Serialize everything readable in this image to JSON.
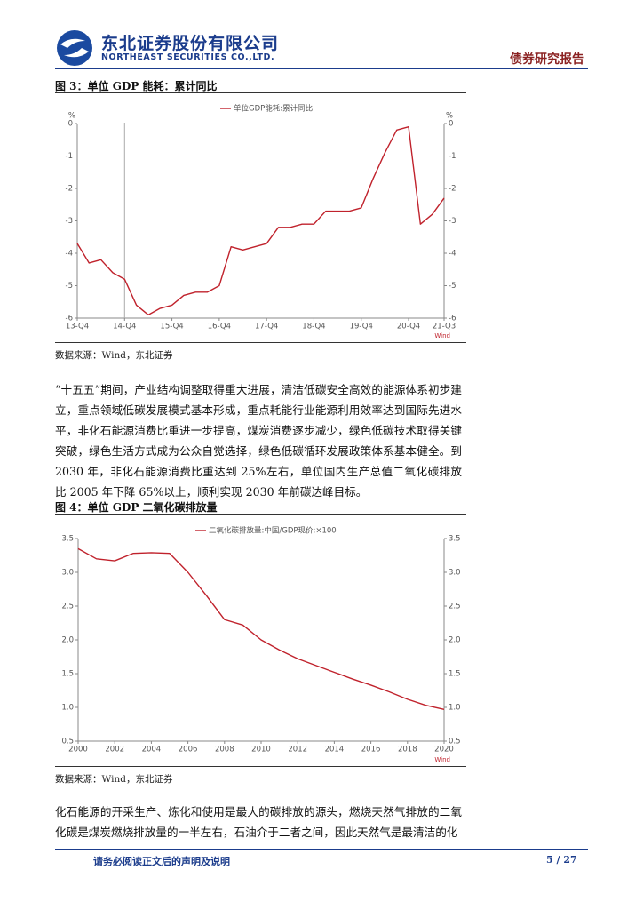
{
  "header": {
    "company": "东北证券股份有限公司",
    "company_en": "NORTHEAST SECURITIES CO.,LTD.",
    "report_type": "债券研究报告"
  },
  "chart_data": [
    {
      "type": "line",
      "title": "图 3：单位 GDP 能耗：累计同比",
      "categories": [
        "13-Q4",
        null,
        null,
        null,
        "14-Q4",
        null,
        null,
        null,
        "15-Q4",
        null,
        null,
        null,
        "16-Q4",
        null,
        null,
        null,
        "17-Q4",
        null,
        null,
        null,
        "18-Q4",
        null,
        null,
        null,
        "19-Q4",
        null,
        null,
        null,
        "20-Q4",
        null,
        null,
        "21-Q3"
      ],
      "series": [
        {
          "name": "单位GDP能耗:累计同比",
          "color": "#c0222c",
          "values": [
            -3.7,
            -4.3,
            -4.2,
            -4.6,
            -4.8,
            -5.6,
            -5.9,
            -5.7,
            -5.6,
            -5.3,
            -5.2,
            -5.2,
            -5.0,
            -3.8,
            -3.9,
            -3.8,
            -3.7,
            -3.2,
            -3.2,
            -3.1,
            -3.1,
            -2.7,
            -2.7,
            -2.7,
            -2.6,
            -1.7,
            -0.9,
            -0.2,
            -0.1,
            -3.1,
            -2.8,
            -2.3
          ]
        }
      ],
      "ylim": [
        -6,
        0
      ],
      "yticks": [
        0,
        -1,
        -2,
        -3,
        -4,
        -5,
        -6
      ],
      "y2lim": [
        -6,
        0
      ],
      "y2ticks": [
        0,
        -1,
        -2,
        -3,
        -4,
        -5,
        -6
      ],
      "yunit": "%",
      "y2unit": "%",
      "legend": "top",
      "source_label": "Wind",
      "source": "数据来源：Wind，东北证券"
    },
    {
      "type": "line",
      "title": "图 4：单位 GDP 二氧化碳排放量",
      "x": [
        2000,
        2001,
        2002,
        2003,
        2004,
        2005,
        2006,
        2007,
        2008,
        2009,
        2010,
        2011,
        2012,
        2013,
        2014,
        2015,
        2016,
        2017,
        2018,
        2019,
        2020
      ],
      "series": [
        {
          "name": "二氧化碳排放量:中国/GDP现价:×100",
          "color": "#c0222c",
          "values": [
            3.35,
            3.2,
            3.17,
            3.28,
            3.29,
            3.28,
            3.0,
            2.66,
            2.3,
            2.22,
            2.0,
            1.85,
            1.72,
            1.62,
            1.52,
            1.42,
            1.33,
            1.23,
            1.12,
            1.03,
            0.97
          ]
        }
      ],
      "xlim": [
        2000,
        2020
      ],
      "xticks": [
        2000,
        2002,
        2004,
        2006,
        2008,
        2010,
        2012,
        2014,
        2016,
        2018,
        2020
      ],
      "ylim": [
        0.5,
        3.5
      ],
      "yticks": [
        3.5,
        {
          "value": 3,
          "label": "3.0"
        },
        2.5,
        {
          "value": 2,
          "label": "2.0"
        },
        1.5,
        {
          "value": 1,
          "label": "1.0"
        },
        0.5
      ],
      "y2lim": [
        0.5,
        3.5
      ],
      "y2ticks": [
        3.5,
        {
          "value": 3,
          "label": "3.0"
        },
        2.5,
        {
          "value": 2,
          "label": "2.0"
        },
        1.5,
        {
          "value": 1,
          "label": "1.0"
        },
        0.5
      ],
      "legend": "top",
      "source_label": "Wind",
      "source": "数据来源：Wind，东北证券"
    }
  ],
  "paragraphs": [
    "“十五五”期间，产业结构调整取得重大进展，清洁低碳安全高效的能源体系初步建立，重点领域低碳发展模式基本形成，重点耗能行业能源利用效率达到国际先进水平，非化石能源消费比重进一步提高，煤炭消费逐步减少，绿色低碳技术取得关键突破，绿色生活方式成为公众自觉选择，绿色低碳循环发展政策体系基本健全。到 2030 年，非化石能源消费比重达到 25%左右，单位国内生产总值二氧化碳排放比 2005 年下降 65%以上，顺利实现 2030 年前碳达峰目标。",
    "化石能源的开采生产、炼化和使用是最大的碳排放的源头，燃烧天然气排放的二氧化碳是煤炭燃烧排放量的一半左右，石油介于二者之间，因此天然气是最清洁的化"
  ],
  "footer": {
    "disclaimer": "请务必阅读正文后的声明及说明",
    "page": "5 / 27"
  }
}
